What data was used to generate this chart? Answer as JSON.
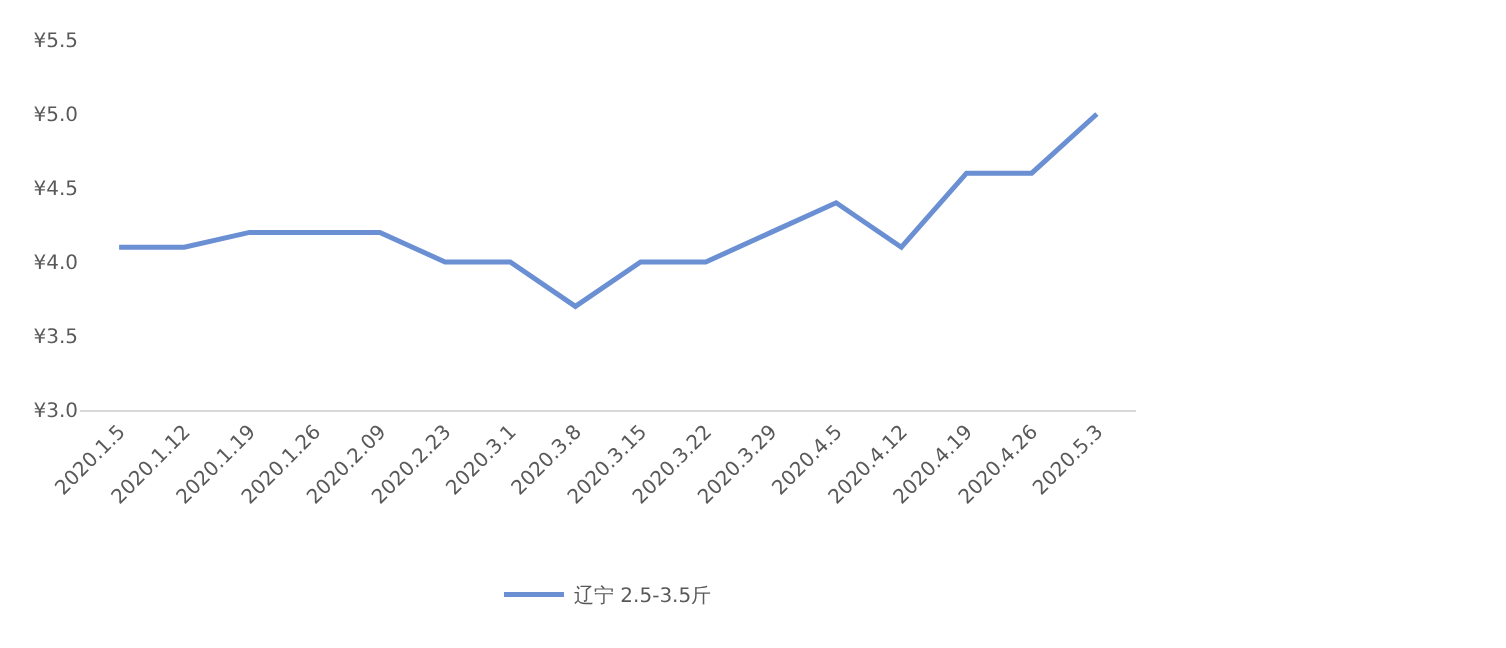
{
  "chart_data": {
    "type": "line",
    "categories": [
      "2020.1.5",
      "2020.1.12",
      "2020.1.19",
      "2020.1.26",
      "2020.2.09",
      "2020.2.23",
      "2020.3.1",
      "2020.3.8",
      "2020.3.15",
      "2020.3.22",
      "2020.3.29",
      "2020.4.5",
      "2020.4.12",
      "2020.4.19",
      "2020.4.26",
      "2020.5.3"
    ],
    "series": [
      {
        "name": "辽宁 2.5-3.5斤",
        "color": "#6a8fd2",
        "values": [
          4.1,
          4.1,
          4.2,
          4.2,
          4.2,
          4.0,
          4.0,
          3.7,
          4.0,
          4.0,
          4.2,
          4.4,
          4.1,
          4.6,
          4.6,
          5.0
        ]
      }
    ],
    "ylim": [
      3.0,
      5.5
    ],
    "yticks": [
      {
        "value": 3.0,
        "label": "¥3.0"
      },
      {
        "value": 3.5,
        "label": "¥3.5"
      },
      {
        "value": 4.0,
        "label": "¥4.0"
      },
      {
        "value": 4.5,
        "label": "¥4.5"
      },
      {
        "value": 5.0,
        "label": "¥5.0"
      },
      {
        "value": 5.5,
        "label": "¥5.5"
      }
    ],
    "grid": false,
    "legend": "bottom",
    "marker": "none",
    "line_style": "solid"
  }
}
